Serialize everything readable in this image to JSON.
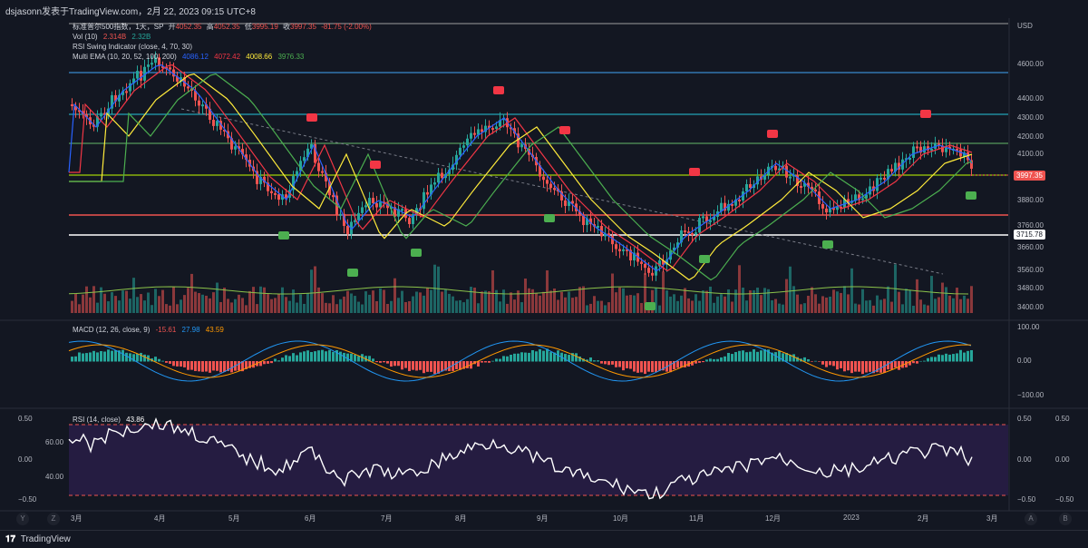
{
  "header": {
    "text": "dsjasonn发表于TradingView.com，2月 22, 2023 09:15 UTC+8"
  },
  "symbol_legend": {
    "title": "标准普尔500指数，1天，SP",
    "open_label": "开",
    "open": "4052.35",
    "high_label": "高",
    "high": "4052.35",
    "low_label": "低",
    "low": "3995.19",
    "close_label": "收",
    "close": "3997.35",
    "change": "-81.75 (-2.00%)"
  },
  "indicators": {
    "vol": {
      "label": "Vol (10)",
      "v1": "2.314B",
      "v2": "2.32B"
    },
    "rsi_swing": {
      "label": "RSI Swing Indicator (close, 4, 70, 30)"
    },
    "multi_ema": {
      "label": "Multi EMA (10, 20, 52, 100, 200)",
      "v1": "4086.12",
      "v2": "4072.42",
      "v3": "4008.66",
      "v4": "3976.33"
    },
    "macd": {
      "label": "MACD (12, 26, close, 9)",
      "v1": "-15.61",
      "v2": "27.98",
      "v3": "43.59"
    },
    "rsi": {
      "label": "RSI (14, close)",
      "v1": "43.86"
    }
  },
  "price_axis": {
    "currency": "USD",
    "ticks": [
      "4600.00",
      "4400.00",
      "4300.00",
      "4200.00",
      "4100.00",
      "3880.00",
      "3760.00",
      "3660.00",
      "3560.00",
      "3480.00",
      "3400.00"
    ],
    "current_price": "3997.35",
    "level_price": "3715.78"
  },
  "macd_axis": {
    "ticks": [
      "100.00",
      "0.00",
      "−100.00"
    ]
  },
  "rsi_axis": {
    "left_ticks": [
      "0.50",
      "60.00",
      "0.00",
      "40.00",
      "−0.50"
    ],
    "right_ticks": [
      "0.50",
      "0.00",
      "−0.50"
    ],
    "right2_ticks": [
      "0.50",
      "0.00",
      "−0.50"
    ]
  },
  "time_axis": {
    "labels": [
      "3月",
      "4月",
      "5月",
      "6月",
      "7月",
      "8月",
      "9月",
      "10月",
      "11月",
      "12月",
      "2023",
      "2月",
      "3月"
    ]
  },
  "footer": {
    "brand": "TradingView",
    "btn_left1": "Y",
    "btn_left2": "Z",
    "btn_right1": "A",
    "btn_right2": "B"
  },
  "colors": {
    "bg": "#131722",
    "up": "#26a69a",
    "down": "#ef5350",
    "ema10": "#2962ff",
    "ema20": "#f23645",
    "ema52": "#ffeb3b",
    "ema100": "#4caf50",
    "rsi_band": "#2a1e4a"
  }
}
